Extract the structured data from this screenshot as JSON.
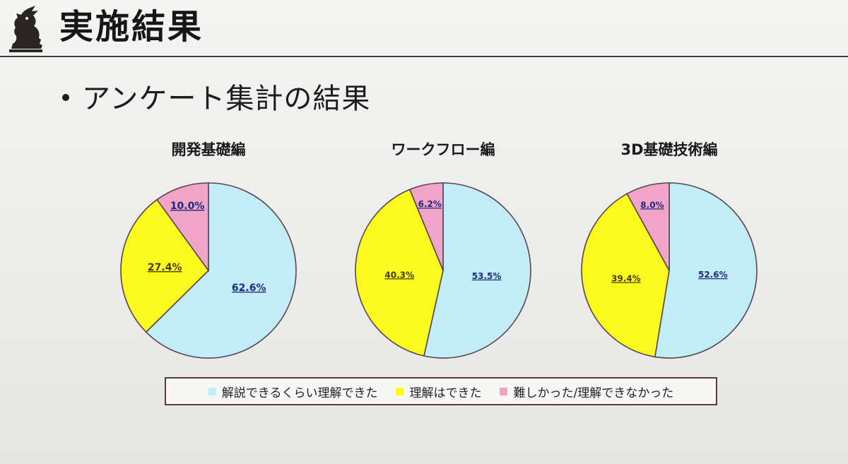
{
  "slide": {
    "title": "実施結果",
    "bullet": "アンケート集計の結果"
  },
  "colors": {
    "understood_explain": "#c2ecf6",
    "understood": "#fbfa1e",
    "difficult": "#f0a4c8",
    "outline": "#5a4452",
    "label_text": "#1f2a7a",
    "label_text_yellow": "#4a3a10"
  },
  "legend": {
    "items": [
      {
        "label": "解説できるくらい理解できた",
        "color": "#c2ecf6"
      },
      {
        "label": "理解はできた",
        "color": "#fbfa1e"
      },
      {
        "label": "難しかった/理解できなかった",
        "color": "#f0a4c8"
      }
    ]
  },
  "chart_data": [
    {
      "type": "pie",
      "title": "開発基礎編",
      "categories": [
        "解説できるくらい理解できた",
        "理解はできた",
        "難しかった/理解できなかった"
      ],
      "values": [
        62.6,
        27.4,
        10.0
      ],
      "value_labels": [
        "62.6%",
        "27.4%",
        "10.0%"
      ]
    },
    {
      "type": "pie",
      "title": "ワークフロー編",
      "categories": [
        "解説できるくらい理解できた",
        "理解はできた",
        "難しかった/理解できなかった"
      ],
      "values": [
        53.5,
        40.3,
        6.2
      ],
      "value_labels": [
        "53.5%",
        "40.3%",
        "6.2%"
      ]
    },
    {
      "type": "pie",
      "title": "3D基礎技術編",
      "categories": [
        "解説できるくらい理解できた",
        "理解はできた",
        "難しかった/理解できなかった"
      ],
      "values": [
        52.6,
        39.4,
        8.0
      ],
      "value_labels": [
        "52.6%",
        "39.4%",
        "8.0%"
      ]
    }
  ]
}
